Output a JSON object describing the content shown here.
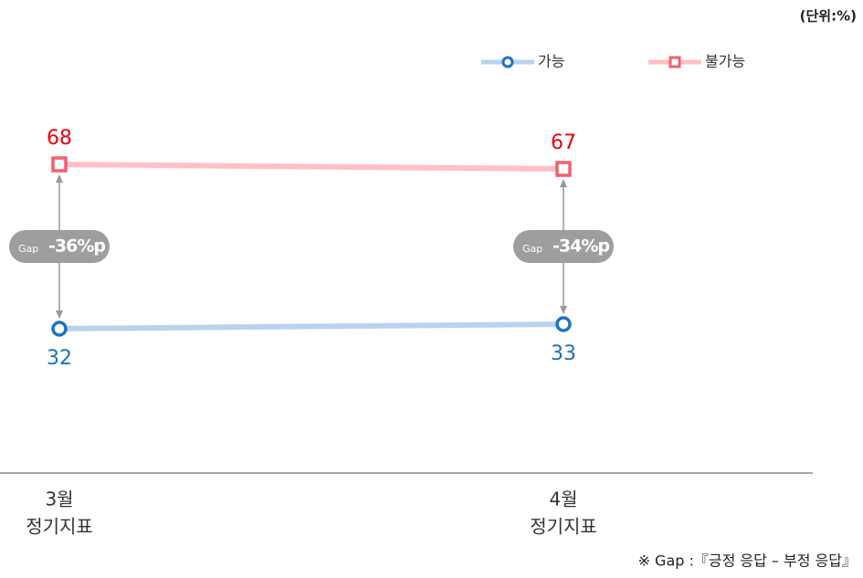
{
  "chart_data": {
    "type": "line",
    "unit": "(단위:%)",
    "categories": [
      [
        "3월",
        "정기지표"
      ],
      [
        "4월",
        "정기지표"
      ]
    ],
    "series": [
      {
        "name": "가능",
        "color": "#1e73be",
        "line_color": "#b8d3ee",
        "label_color": "#1a70b8",
        "marker": "circle",
        "values": [
          32,
          33
        ]
      },
      {
        "name": "불가능",
        "color": "#f0606a",
        "line_color": "#ffc0c4",
        "label_color": "#e8000f",
        "marker": "square",
        "values": [
          68,
          67
        ]
      }
    ],
    "ylim": [
      0,
      100
    ],
    "annotations": [
      {
        "label": "Gap",
        "value_label": "-36%p"
      },
      {
        "label": "Gap",
        "value_label": "-34%p"
      }
    ],
    "footnote": "※ Gap :『긍정 응답 – 부정 응답』"
  }
}
